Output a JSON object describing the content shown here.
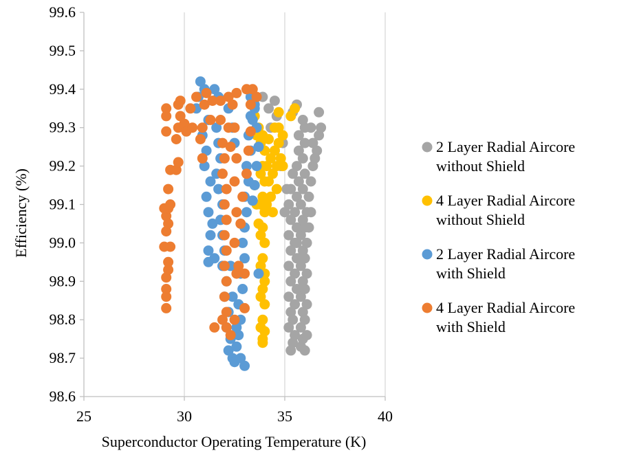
{
  "chart_data": {
    "type": "scatter",
    "title": "",
    "xlabel": "Superconductor Operating Temperature (K)",
    "ylabel": "Efficiency (%)",
    "xlim": [
      25,
      40
    ],
    "ylim": [
      98.6,
      99.6
    ],
    "xticks": [
      25,
      30,
      35,
      40
    ],
    "yticks": [
      98.6,
      98.7,
      98.8,
      98.9,
      99.0,
      99.1,
      99.2,
      99.3,
      99.4,
      99.5,
      99.6
    ],
    "xtick_labels": [
      "25",
      "30",
      "35",
      "40"
    ],
    "ytick_labels": [
      "98.6",
      "98.7",
      "98.8",
      "98.9",
      "99.0",
      "99.1",
      "99.2",
      "99.3",
      "99.4",
      "99.5",
      "99.6"
    ],
    "grid": "vertical",
    "legend_position": "right",
    "series": [
      {
        "name": "2 Layer Radial Aircore without Shield",
        "legend_lines": [
          "2 Layer Radial Aircore",
          "without Shield"
        ],
        "color": "#A5A5A5",
        "points": [
          [
            35.3,
            98.72
          ],
          [
            35.4,
            98.74
          ],
          [
            35.5,
            98.76
          ],
          [
            35.4,
            98.8
          ],
          [
            35.5,
            98.84
          ],
          [
            35.6,
            98.88
          ],
          [
            35.5,
            98.92
          ],
          [
            35.6,
            98.96
          ],
          [
            35.5,
            99.0
          ],
          [
            35.6,
            99.04
          ],
          [
            35.5,
            99.08
          ],
          [
            35.6,
            99.12
          ],
          [
            35.7,
            99.16
          ],
          [
            35.6,
            99.2
          ],
          [
            35.7,
            99.24
          ],
          [
            35.8,
            98.73
          ],
          [
            35.9,
            98.75
          ],
          [
            35.8,
            98.78
          ],
          [
            35.9,
            98.82
          ],
          [
            35.8,
            98.86
          ],
          [
            35.9,
            98.9
          ],
          [
            35.8,
            98.94
          ],
          [
            35.9,
            98.98
          ],
          [
            35.8,
            99.02
          ],
          [
            35.9,
            99.06
          ],
          [
            35.8,
            99.1
          ],
          [
            35.9,
            99.14
          ],
          [
            36.0,
            99.18
          ],
          [
            35.9,
            99.22
          ],
          [
            36.0,
            99.26
          ],
          [
            35.2,
            98.78
          ],
          [
            35.3,
            98.82
          ],
          [
            35.2,
            98.86
          ],
          [
            35.3,
            98.9
          ],
          [
            35.2,
            98.94
          ],
          [
            35.3,
            98.98
          ],
          [
            35.2,
            99.02
          ],
          [
            35.3,
            99.06
          ],
          [
            35.2,
            99.1
          ],
          [
            35.3,
            99.14
          ],
          [
            36.0,
            98.72
          ],
          [
            36.1,
            98.76
          ],
          [
            36.0,
            98.8
          ],
          [
            36.1,
            98.84
          ],
          [
            36.0,
            98.88
          ],
          [
            36.1,
            98.92
          ],
          [
            36.0,
            98.96
          ],
          [
            36.1,
            99.0
          ],
          [
            36.0,
            99.04
          ],
          [
            36.1,
            99.08
          ],
          [
            36.2,
            99.12
          ],
          [
            36.3,
            99.16
          ],
          [
            36.4,
            99.2
          ],
          [
            36.5,
            99.22
          ],
          [
            36.6,
            99.24
          ],
          [
            36.7,
            99.28
          ],
          [
            36.8,
            99.3
          ],
          [
            36.7,
            99.34
          ],
          [
            36.4,
            99.26
          ],
          [
            36.3,
            99.3
          ],
          [
            35.6,
            99.36
          ],
          [
            35.4,
            99.34
          ],
          [
            35.9,
            99.32
          ],
          [
            36.0,
            99.3
          ],
          [
            35.7,
            99.28
          ],
          [
            33.9,
            99.38
          ],
          [
            34.2,
            99.35
          ],
          [
            34.5,
            99.37
          ],
          [
            34.3,
            99.3
          ],
          [
            34.6,
            99.33
          ],
          [
            34.5,
            99.24
          ],
          [
            34.8,
            99.2
          ],
          [
            35.0,
            99.08
          ],
          [
            35.1,
            99.14
          ],
          [
            34.9,
            99.26
          ],
          [
            35.4,
            99.18
          ],
          [
            35.6,
            99.0
          ],
          [
            35.7,
            98.96
          ],
          [
            36.2,
            99.04
          ],
          [
            36.3,
            99.08
          ]
        ]
      },
      {
        "name": "4 Layer Radial Aircore without Shield",
        "legend_lines": [
          "4 Layer Radial Aircore",
          "without Shield"
        ],
        "color": "#FFC000",
        "points": [
          [
            33.9,
            98.75
          ],
          [
            34.0,
            98.77
          ],
          [
            33.9,
            98.8
          ],
          [
            34.0,
            98.84
          ],
          [
            33.9,
            98.88
          ],
          [
            34.0,
            98.92
          ],
          [
            33.9,
            98.96
          ],
          [
            34.0,
            99.0
          ],
          [
            33.9,
            99.04
          ],
          [
            34.0,
            99.08
          ],
          [
            33.9,
            99.12
          ],
          [
            34.0,
            99.16
          ],
          [
            33.9,
            99.2
          ],
          [
            34.0,
            99.24
          ],
          [
            33.9,
            99.28
          ],
          [
            33.8,
            98.78
          ],
          [
            33.8,
            98.86
          ],
          [
            33.8,
            98.94
          ],
          [
            33.8,
            99.02
          ],
          [
            33.8,
            99.1
          ],
          [
            33.8,
            99.18
          ],
          [
            33.8,
            99.26
          ],
          [
            33.7,
            99.3
          ],
          [
            33.6,
            99.28
          ],
          [
            33.5,
            99.33
          ],
          [
            34.1,
            99.2
          ],
          [
            34.2,
            99.16
          ],
          [
            34.3,
            99.22
          ],
          [
            34.4,
            99.18
          ],
          [
            34.5,
            99.24
          ],
          [
            34.6,
            99.2
          ],
          [
            34.7,
            99.26
          ],
          [
            34.8,
            99.22
          ],
          [
            34.9,
            99.2
          ],
          [
            34.6,
            99.14
          ],
          [
            34.5,
            99.3
          ],
          [
            34.7,
            99.34
          ],
          [
            35.5,
            99.35
          ],
          [
            35.3,
            99.33
          ],
          [
            34.2,
            99.27
          ],
          [
            34.3,
            99.12
          ],
          [
            34.1,
            99.1
          ],
          [
            33.7,
            99.05
          ],
          [
            33.6,
            99.1
          ],
          [
            33.5,
            99.15
          ],
          [
            34.4,
            99.08
          ],
          [
            34.7,
            99.3
          ],
          [
            34.9,
            99.28
          ],
          [
            33.9,
            98.74
          ],
          [
            34.0,
            98.9
          ]
        ]
      },
      {
        "name": "2 Layer Radial Aircore with Shield",
        "legend_lines": [
          "2 Layer Radial Aircore",
          "with Shield"
        ],
        "color": "#5B9BD5",
        "points": [
          [
            30.8,
            99.42
          ],
          [
            30.7,
            99.38
          ],
          [
            30.6,
            99.35
          ],
          [
            31.0,
            99.4
          ],
          [
            31.2,
            99.32
          ],
          [
            30.9,
            99.28
          ],
          [
            31.1,
            99.24
          ],
          [
            31.0,
            99.2
          ],
          [
            31.3,
            99.16
          ],
          [
            31.1,
            99.12
          ],
          [
            31.2,
            99.08
          ],
          [
            31.4,
            99.05
          ],
          [
            31.3,
            99.02
          ],
          [
            31.2,
            98.98
          ],
          [
            31.5,
            98.96
          ],
          [
            31.2,
            98.95
          ],
          [
            31.5,
            99.4
          ],
          [
            31.7,
            99.38
          ],
          [
            31.6,
            99.3
          ],
          [
            31.7,
            99.26
          ],
          [
            31.8,
            99.22
          ],
          [
            31.6,
            99.18
          ],
          [
            31.7,
            99.14
          ],
          [
            31.9,
            99.1
          ],
          [
            31.8,
            99.06
          ],
          [
            31.9,
            99.02
          ],
          [
            32.0,
            98.98
          ],
          [
            31.9,
            98.94
          ],
          [
            32.1,
            98.9
          ],
          [
            32.0,
            98.86
          ],
          [
            32.2,
            98.82
          ],
          [
            32.1,
            98.78
          ],
          [
            32.3,
            98.75
          ],
          [
            32.2,
            98.72
          ],
          [
            32.4,
            98.7
          ],
          [
            32.5,
            98.69
          ],
          [
            32.6,
            98.73
          ],
          [
            32.7,
            98.76
          ],
          [
            32.8,
            98.8
          ],
          [
            32.7,
            98.84
          ],
          [
            32.9,
            98.88
          ],
          [
            32.8,
            98.92
          ],
          [
            33.0,
            98.96
          ],
          [
            32.9,
            99.0
          ],
          [
            33.0,
            99.04
          ],
          [
            33.1,
            99.08
          ],
          [
            33.0,
            99.12
          ],
          [
            33.2,
            99.16
          ],
          [
            33.1,
            99.2
          ],
          [
            33.3,
            99.24
          ],
          [
            33.2,
            99.28
          ],
          [
            33.4,
            99.32
          ],
          [
            33.5,
            99.36
          ],
          [
            33.3,
            99.33
          ],
          [
            33.6,
            99.3
          ],
          [
            33.7,
            99.25
          ],
          [
            33.5,
            99.15
          ],
          [
            33.4,
            99.11
          ],
          [
            33.6,
            99.2
          ],
          [
            33.0,
            98.68
          ],
          [
            32.8,
            98.7
          ],
          [
            32.6,
            98.78
          ],
          [
            32.4,
            98.86
          ],
          [
            32.3,
            98.94
          ],
          [
            33.7,
            98.92
          ],
          [
            33.5,
            99.35
          ],
          [
            33.3,
            99.38
          ],
          [
            32.2,
            99.35
          ],
          [
            32.4,
            99.3
          ],
          [
            32.5,
            99.26
          ]
        ]
      },
      {
        "name": "4 Layer Radial Aircore with Shield",
        "legend_lines": [
          "4 Layer Radial Aircore",
          "with Shield"
        ],
        "color": "#ED7D31",
        "points": [
          [
            29.1,
            98.83
          ],
          [
            29.1,
            98.86
          ],
          [
            29.1,
            98.88
          ],
          [
            29.1,
            98.91
          ],
          [
            29.2,
            98.93
          ],
          [
            29.2,
            98.95
          ],
          [
            29.0,
            98.99
          ],
          [
            29.3,
            98.99
          ],
          [
            29.1,
            99.03
          ],
          [
            29.2,
            99.05
          ],
          [
            29.1,
            99.07
          ],
          [
            29.2,
            99.09
          ],
          [
            29.0,
            99.09
          ],
          [
            29.3,
            99.1
          ],
          [
            29.2,
            99.14
          ],
          [
            29.3,
            99.19
          ],
          [
            29.1,
            99.29
          ],
          [
            29.1,
            99.33
          ],
          [
            29.1,
            99.35
          ],
          [
            29.6,
            99.19
          ],
          [
            29.7,
            99.21
          ],
          [
            29.6,
            99.27
          ],
          [
            29.7,
            99.3
          ],
          [
            29.8,
            99.33
          ],
          [
            29.7,
            99.36
          ],
          [
            29.8,
            99.37
          ],
          [
            30.0,
            99.31
          ],
          [
            30.1,
            99.29
          ],
          [
            30.3,
            99.35
          ],
          [
            30.4,
            99.3
          ],
          [
            30.6,
            99.38
          ],
          [
            30.8,
            99.27
          ],
          [
            30.9,
            99.22
          ],
          [
            30.9,
            99.3
          ],
          [
            31.0,
            99.36
          ],
          [
            31.1,
            99.39
          ],
          [
            31.4,
            99.37
          ],
          [
            31.3,
            99.32
          ],
          [
            31.8,
            99.32
          ],
          [
            31.9,
            99.26
          ],
          [
            32.0,
            99.22
          ],
          [
            31.9,
            99.18
          ],
          [
            32.1,
            99.14
          ],
          [
            32.0,
            99.1
          ],
          [
            32.1,
            99.06
          ],
          [
            32.0,
            99.02
          ],
          [
            32.1,
            98.98
          ],
          [
            32.0,
            98.94
          ],
          [
            32.1,
            98.9
          ],
          [
            32.0,
            98.86
          ],
          [
            32.1,
            98.82
          ],
          [
            31.9,
            98.8
          ],
          [
            32.1,
            98.78
          ],
          [
            31.5,
            98.78
          ],
          [
            32.3,
            98.76
          ],
          [
            32.2,
            99.38
          ],
          [
            32.4,
            99.36
          ],
          [
            32.6,
            99.39
          ],
          [
            33.1,
            99.4
          ],
          [
            33.4,
            99.4
          ],
          [
            32.5,
            99.3
          ],
          [
            32.6,
            99.22
          ],
          [
            32.5,
            99.16
          ],
          [
            32.6,
            99.08
          ],
          [
            32.5,
            99.0
          ],
          [
            32.6,
            98.92
          ],
          [
            32.7,
            98.94
          ],
          [
            32.5,
            98.8
          ],
          [
            33.0,
            98.83
          ],
          [
            33.0,
            98.92
          ],
          [
            33.3,
            99.29
          ],
          [
            33.2,
            99.24
          ],
          [
            33.1,
            99.18
          ],
          [
            32.9,
            99.12
          ],
          [
            33.3,
            99.36
          ],
          [
            33.6,
            99.38
          ],
          [
            32.8,
            99.05
          ],
          [
            32.2,
            99.3
          ],
          [
            32.3,
            99.25
          ],
          [
            31.8,
            99.37
          ]
        ]
      }
    ]
  }
}
